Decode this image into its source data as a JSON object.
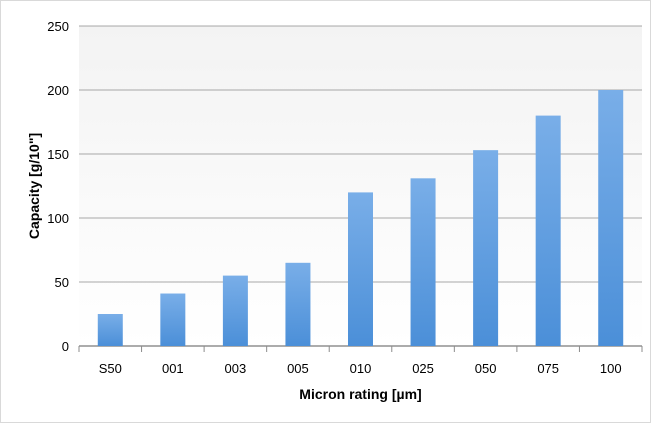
{
  "chart_data": {
    "type": "bar",
    "categories": [
      "S50",
      "001",
      "003",
      "005",
      "010",
      "025",
      "050",
      "075",
      "100"
    ],
    "series": [
      {
        "values": [
          25,
          41,
          55,
          65,
          120,
          131,
          153,
          180,
          200
        ]
      }
    ],
    "xlabel": "Micron rating [µm]",
    "ylabel": "Capacity [g/10\"]",
    "ylim": [
      0,
      250
    ],
    "yticks": [
      "0",
      "50",
      "100",
      "150",
      "200",
      "250"
    ],
    "grid": true,
    "legend": "none",
    "colors": {
      "bar_top": "#79aee8",
      "bar_bottom": "#4b8fd8",
      "grid": "#8c8c8c",
      "plot_top": "#f3f3f3",
      "plot_bottom": "#ffffff",
      "axis_text": "#000000"
    }
  }
}
